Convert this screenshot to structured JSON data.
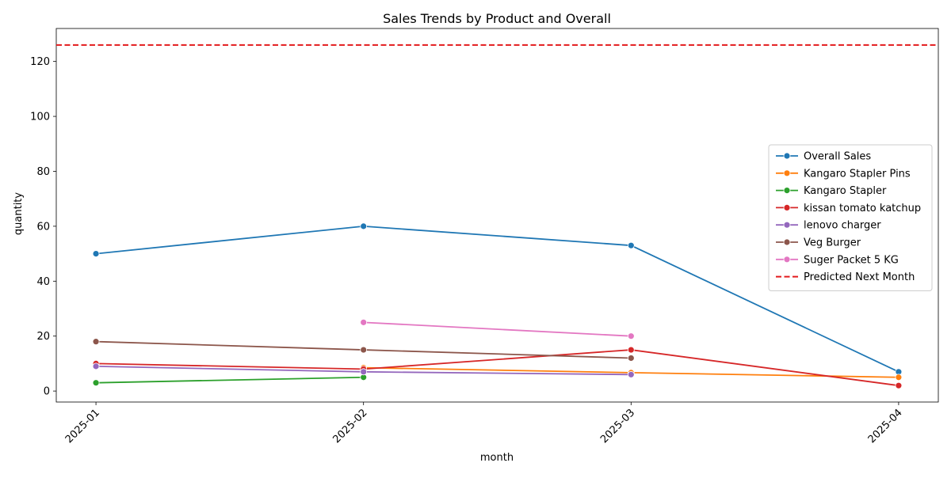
{
  "chart_data": {
    "type": "line",
    "title": "Sales Trends by Product and Overall",
    "xlabel": "month",
    "ylabel": "quantity",
    "categories": [
      "2025-01",
      "2025-02",
      "2025-03",
      "2025-04"
    ],
    "ylim": [
      -4,
      132
    ],
    "yticks": [
      0,
      20,
      40,
      60,
      80,
      100,
      120
    ],
    "grid": false,
    "legend_position": "center-right",
    "series": [
      {
        "name": "Overall Sales",
        "color": "#1f77b4",
        "values": [
          50,
          60,
          53,
          7
        ]
      },
      {
        "name": "Kangaro Stapler Pins",
        "color": "#ff7f0e",
        "values": [
          null,
          8.5,
          6.7,
          5
        ]
      },
      {
        "name": "Kangaro Stapler",
        "color": "#2ca02c",
        "values": [
          3,
          5,
          null,
          null
        ]
      },
      {
        "name": "kissan tomato katchup",
        "color": "#d62728",
        "values": [
          10,
          8,
          15,
          2
        ]
      },
      {
        "name": "lenovo charger",
        "color": "#9467bd",
        "values": [
          9,
          7,
          6,
          null
        ]
      },
      {
        "name": "Veg Burger",
        "color": "#8c564b",
        "values": [
          18,
          15,
          12,
          null
        ]
      },
      {
        "name": "Suger Packet 5 KG",
        "color": "#e377c2",
        "values": [
          null,
          25,
          20,
          null
        ]
      }
    ],
    "reference_line": {
      "name": "Predicted Next Month",
      "color": "#e31a1c",
      "value": 126,
      "style": "dashed"
    }
  }
}
